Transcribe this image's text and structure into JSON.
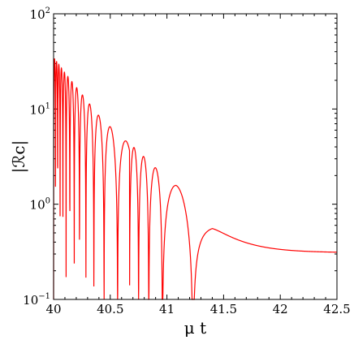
{
  "chart_data": {
    "type": "line",
    "title": "",
    "xlabel": "μ t",
    "ylabel": "|ℛc|",
    "x_scale": "linear",
    "y_scale": "log",
    "xlim": [
      40,
      42.5
    ],
    "ylim": [
      0.1,
      100
    ],
    "grid": false,
    "legend": "none",
    "x_ticks": [
      {
        "value": 40,
        "label": "40"
      },
      {
        "value": 40.5,
        "label": "40.5"
      },
      {
        "value": 41,
        "label": "41"
      },
      {
        "value": 41.5,
        "label": "41.5"
      },
      {
        "value": 42,
        "label": "42"
      },
      {
        "value": 42.5,
        "label": "42.5"
      }
    ],
    "y_ticks": [
      {
        "value": 0.1,
        "base": "10",
        "exp": "−1"
      },
      {
        "value": 1,
        "base": "10",
        "exp": "0"
      },
      {
        "value": 10,
        "base": "10",
        "exp": "1"
      },
      {
        "value": 100,
        "base": "10",
        "exp": "2"
      }
    ],
    "series": [
      {
        "color": "#ff0000",
        "description_points": {
          "x": [
            40.0,
            40.1,
            40.2,
            40.3,
            40.4,
            40.5,
            40.6,
            40.65,
            40.75,
            40.85,
            41.08,
            41.4,
            41.6,
            41.8,
            42.0,
            42.2,
            42.5
          ],
          "y": [
            35,
            24,
            17,
            12,
            8.5,
            6.5,
            5.0,
            4.5,
            3.6,
            2.7,
            1.6,
            0.59,
            0.45,
            0.37,
            0.33,
            0.315,
            0.31
          ]
        },
        "zeros_x": [
          40.67,
          40.75,
          40.84,
          40.96,
          41.23
        ]
      }
    ]
  }
}
